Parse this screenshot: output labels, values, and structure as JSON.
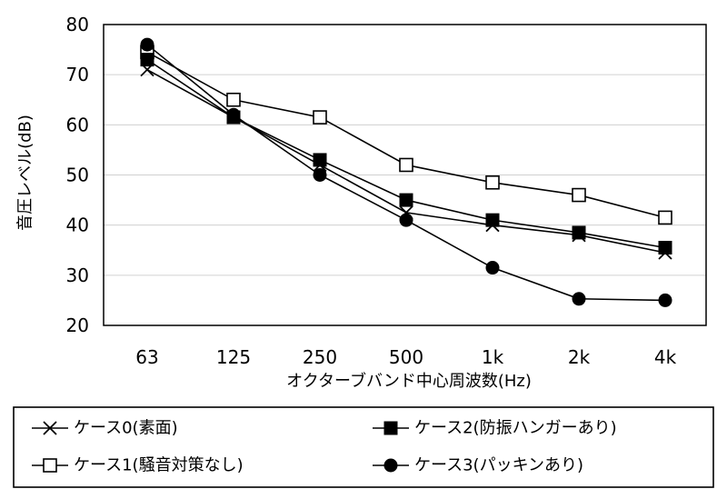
{
  "chart_data": {
    "type": "line",
    "title": "",
    "xlabel": "オクターブバンド中心周波数(Hz)",
    "ylabel": "音圧レベル(dB)",
    "categories": [
      "63",
      "125",
      "250",
      "500",
      "1k",
      "2k",
      "4k"
    ],
    "ylim": [
      20,
      80
    ],
    "yticks": [
      20,
      30,
      40,
      50,
      60,
      70,
      80
    ],
    "grid": true,
    "legend_position": "bottom",
    "series": [
      {
        "name": "ケース0(素面)",
        "marker": "x",
        "values": [
          71,
          61.5,
          52,
          42.5,
          40,
          38,
          34.5
        ]
      },
      {
        "name": "ケース1(騒音対策なし)",
        "marker": "square-open",
        "values": [
          74.5,
          65,
          61.5,
          52,
          48.5,
          46,
          41.5
        ]
      },
      {
        "name": "ケース2(防振ハンガーあり)",
        "marker": "square-filled",
        "values": [
          73,
          61.5,
          53,
          45,
          41,
          38.5,
          35.5
        ]
      },
      {
        "name": "ケース3(パッキンあり)",
        "marker": "circle-filled",
        "values": [
          76,
          62,
          50,
          41,
          31.5,
          25.3,
          25
        ]
      }
    ]
  }
}
